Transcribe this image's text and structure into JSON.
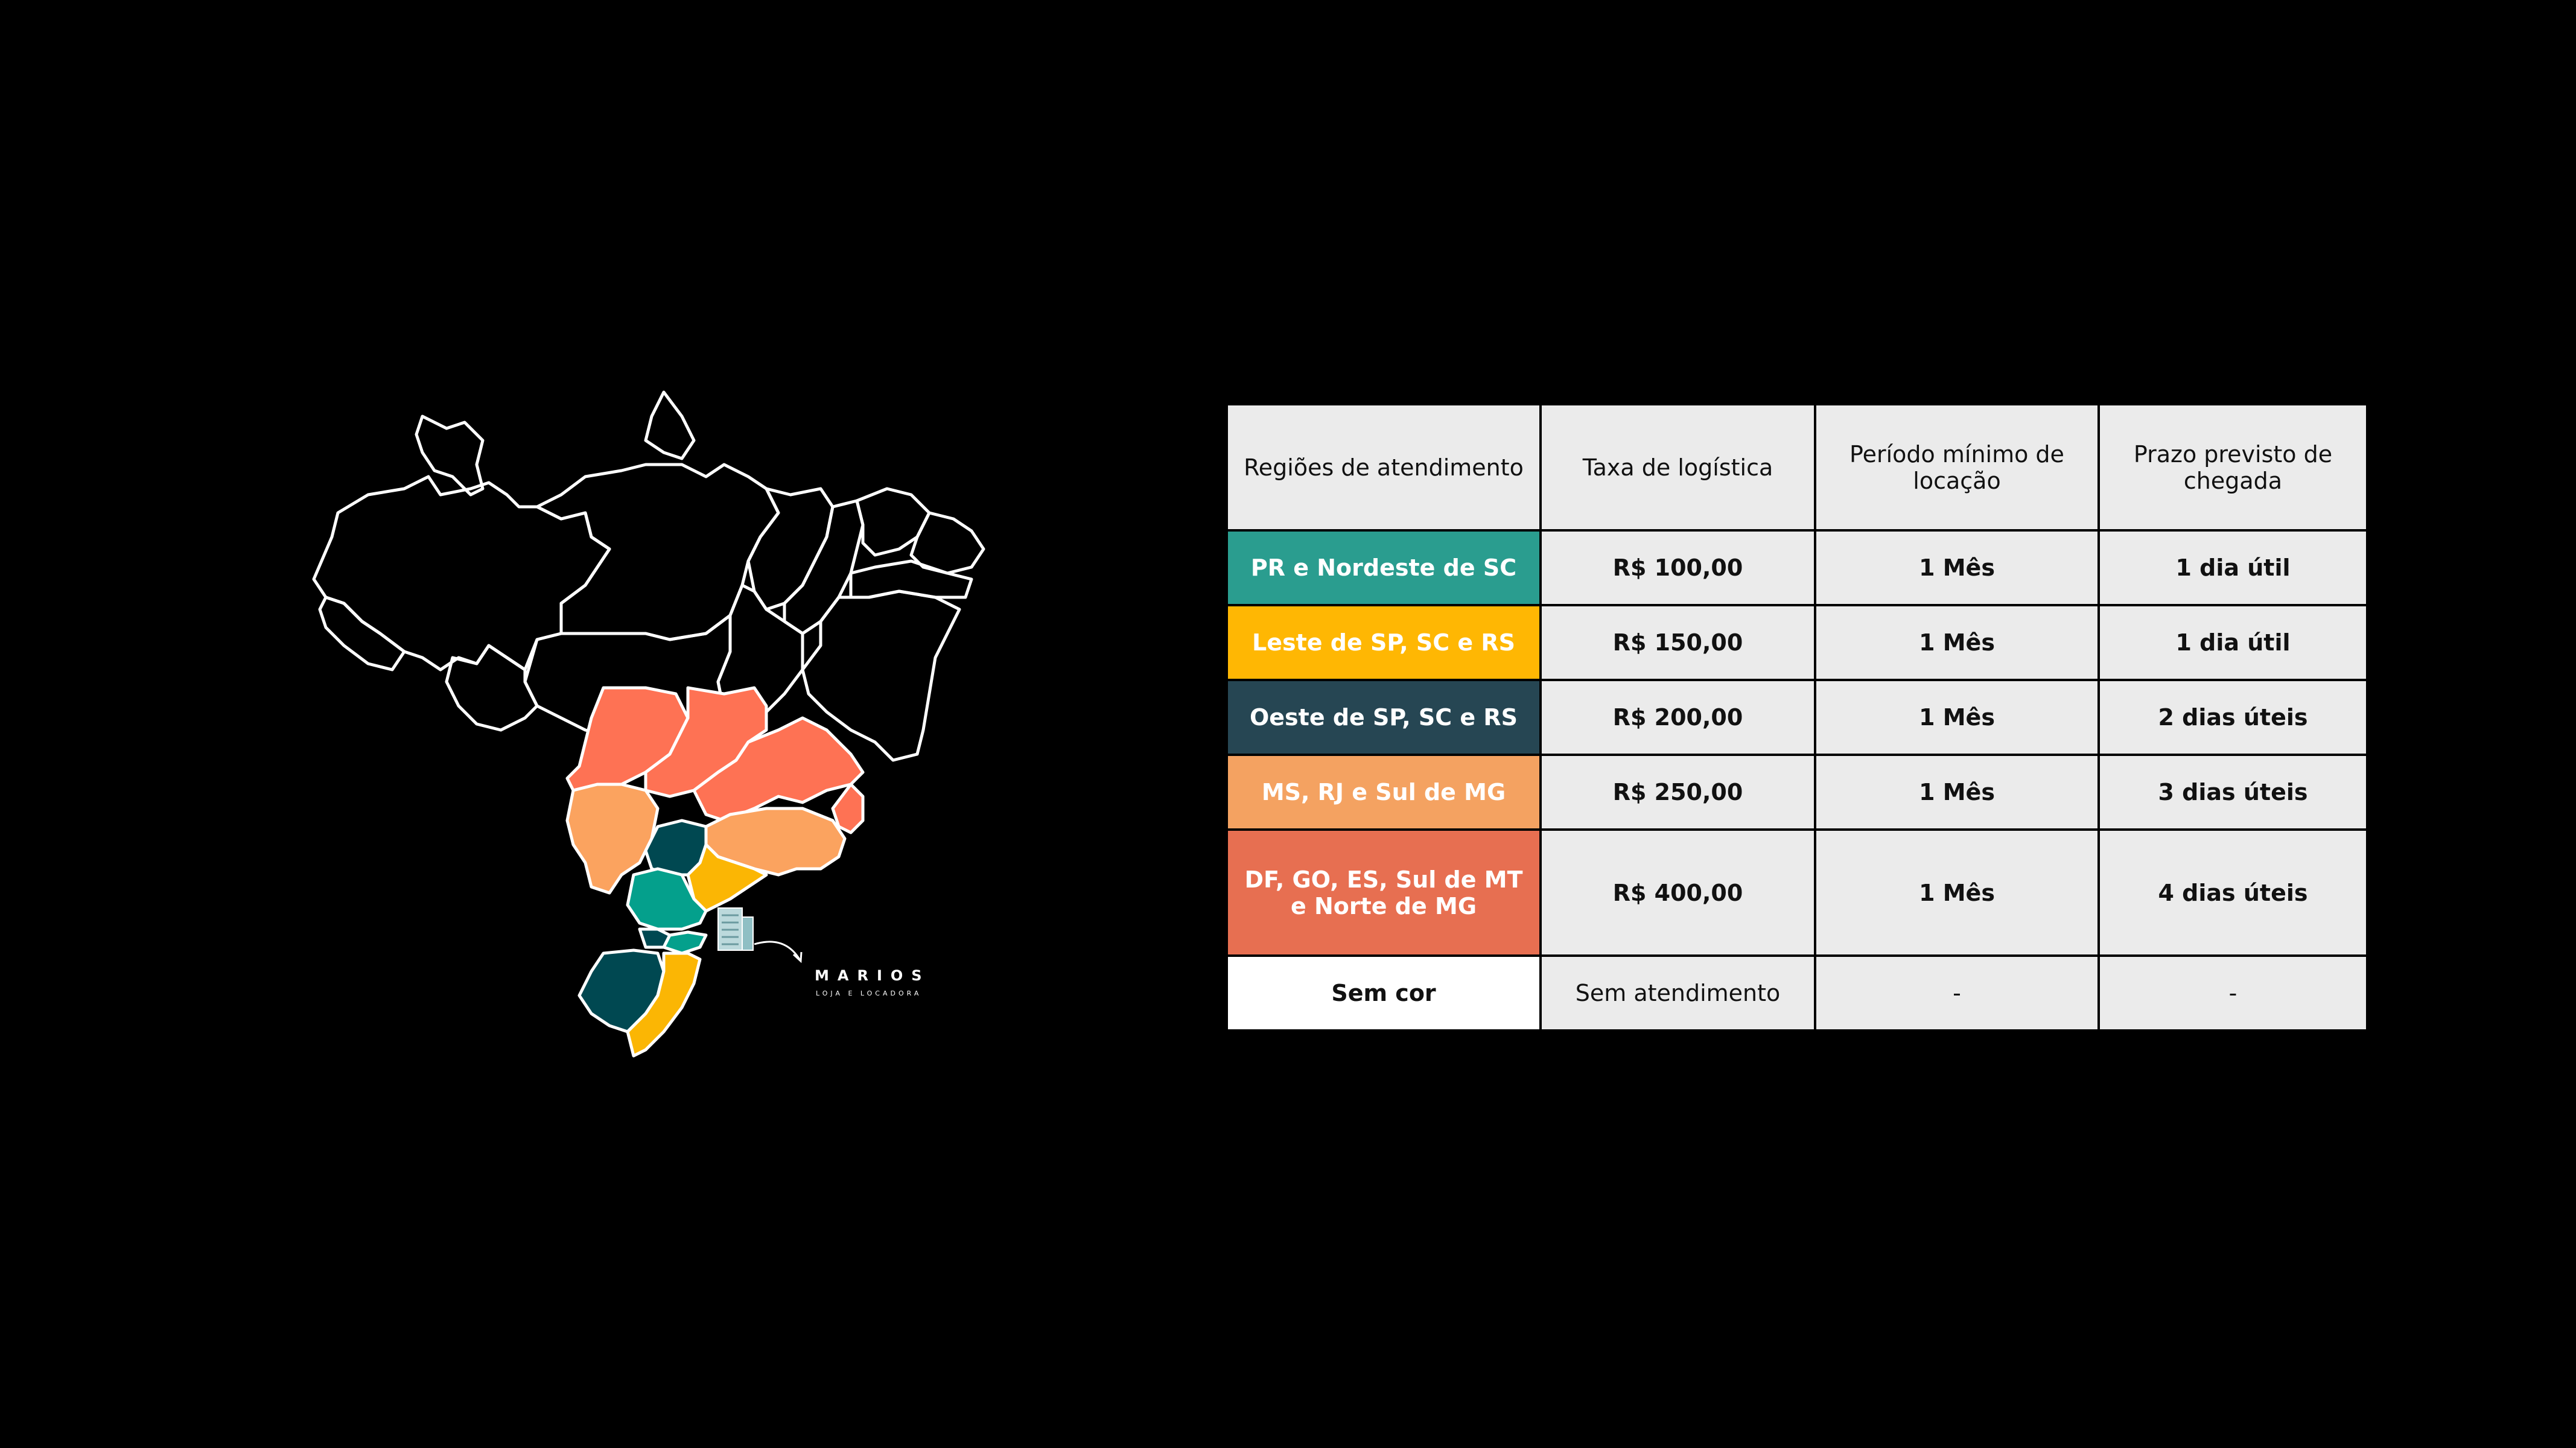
{
  "brand": {
    "name": "MARIOS",
    "subtitle": "LOJA E LOCADORA"
  },
  "icons": {
    "building": "building-icon",
    "arrow": "curved-arrow-icon"
  },
  "table": {
    "headers": [
      "Regiões de atendimento",
      "Taxa de logística",
      "Período mínimo de locação",
      "Prazo previsto de chegada"
    ],
    "rows": [
      {
        "region": "PR e Nordeste de SC",
        "color": "#2a9d8f",
        "fee": "R$ 100,00",
        "min_period": "1 Mês",
        "eta": "1 dia útil"
      },
      {
        "region": "Leste de SP, SC e RS",
        "color": "#ffb703",
        "fee": "R$ 150,00",
        "min_period": "1 Mês",
        "eta": "1 dia útil"
      },
      {
        "region": "Oeste de SP, SC e RS",
        "color": "#264653",
        "fee": "R$ 200,00",
        "min_period": "1 Mês",
        "eta": "2 dias úteis"
      },
      {
        "region": "MS, RJ e Sul de MG",
        "color": "#f4a261",
        "fee": "R$ 250,00",
        "min_period": "1 Mês",
        "eta": "3 dias úteis"
      },
      {
        "region": "DF, GO, ES, Sul de MT e Norte de MG",
        "color": "#e76f51",
        "fee": "R$ 400,00",
        "min_period": "1 Mês",
        "eta": "4 dias úteis"
      },
      {
        "region": "Sem cor",
        "color": "#ffffff",
        "fee": "Sem atendimento",
        "min_period": "-",
        "eta": "-"
      }
    ]
  },
  "map_colors": {
    "tier1": "#04a08c",
    "tier2": "#fbb604",
    "tier3": "#004851",
    "tier4": "#fba35f",
    "tier5": "#fe7254",
    "outline": "#ffffff"
  }
}
